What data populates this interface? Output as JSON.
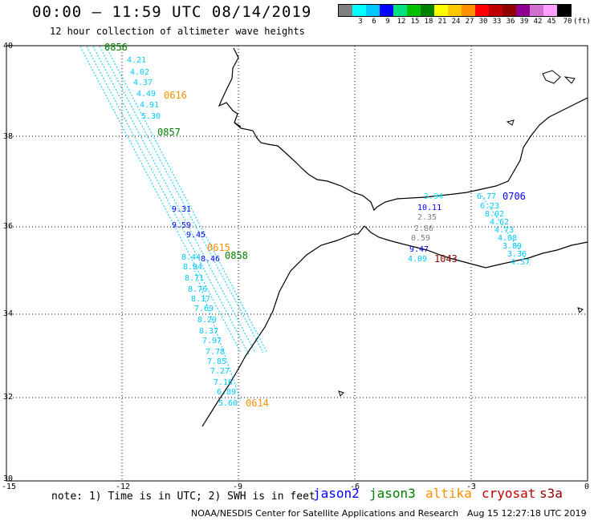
{
  "header": {
    "title": "00:00 – 11:59 UTC 08/14/2019",
    "subtitle": "12 hour collection of altimeter wave heights"
  },
  "legend": {
    "colors": [
      "#808080",
      "#00ffff",
      "#00c8ff",
      "#0000ff",
      "#00e080",
      "#00c000",
      "#008000",
      "#ffff00",
      "#ffc800",
      "#ff9000",
      "#ff0000",
      "#c00000",
      "#900000",
      "#900090",
      "#d070d0",
      "#ffa0ff",
      "#000000"
    ],
    "labels": [
      "3",
      "6",
      "9",
      "12",
      "15",
      "18",
      "21",
      "24",
      "27",
      "30",
      "33",
      "36",
      "39",
      "42",
      "45",
      "70",
      "(ft)"
    ]
  },
  "axes": {
    "lon_ticks": [
      "-15",
      "-12",
      "-9",
      "-6",
      "-3",
      "0"
    ],
    "lat_ticks": [
      "40",
      "38",
      "36",
      "34",
      "32",
      "30"
    ]
  },
  "track_labels": [
    {
      "text": "0856",
      "color": "#008000"
    },
    {
      "text": "0616",
      "color": "#ff9000"
    },
    {
      "text": "0857",
      "color": "#008000"
    },
    {
      "text": "0615",
      "color": "#ff9000"
    },
    {
      "text": "0858",
      "color": "#008000"
    },
    {
      "text": "0614",
      "color": "#ff9000"
    },
    {
      "text": "0706",
      "color": "#0000ff"
    },
    {
      "text": "1043",
      "color": "#900000"
    }
  ],
  "track_values": [
    {
      "text": "4.21",
      "color": "#00c8ff"
    },
    {
      "text": "4.02",
      "color": "#00c8ff"
    },
    {
      "text": "4.37",
      "color": "#00c8ff"
    },
    {
      "text": "4.49",
      "color": "#00c8ff"
    },
    {
      "text": "4.91",
      "color": "#00c8ff"
    },
    {
      "text": "5.30",
      "color": "#00c8ff"
    },
    {
      "text": "9.31",
      "color": "#0000ff"
    },
    {
      "text": "9.59",
      "color": "#0000ff"
    },
    {
      "text": "9.45",
      "color": "#0000ff"
    },
    {
      "text": "8.44",
      "color": "#00c8ff"
    },
    {
      "text": "8.46",
      "color": "#0000ff"
    },
    {
      "text": "8.94",
      "color": "#00c8ff"
    },
    {
      "text": "8.71",
      "color": "#00c8ff"
    },
    {
      "text": "8.76",
      "color": "#00c8ff"
    },
    {
      "text": "8.17",
      "color": "#00c8ff"
    },
    {
      "text": "7.69",
      "color": "#00c8ff"
    },
    {
      "text": "8.29",
      "color": "#00c8ff"
    },
    {
      "text": "8.37",
      "color": "#00c8ff"
    },
    {
      "text": "7.97",
      "color": "#00c8ff"
    },
    {
      "text": "7.78",
      "color": "#00c8ff"
    },
    {
      "text": "7.85",
      "color": "#00c8ff"
    },
    {
      "text": "7.27",
      "color": "#00c8ff"
    },
    {
      "text": "7.16",
      "color": "#00c8ff"
    },
    {
      "text": "6.89",
      "color": "#00c8ff"
    },
    {
      "text": "5.60",
      "color": "#00c8ff"
    },
    {
      "text": "3.94",
      "color": "#00ffff"
    },
    {
      "text": "10.11",
      "color": "#0000ff"
    },
    {
      "text": "2.35",
      "color": "#808080"
    },
    {
      "text": "2.86",
      "color": "#808080"
    },
    {
      "text": "0.59",
      "color": "#808080"
    },
    {
      "text": "9.47",
      "color": "#0000ff"
    },
    {
      "text": "4.09",
      "color": "#00c8ff"
    },
    {
      "text": "6.77",
      "color": "#00c8ff"
    },
    {
      "text": "6.23",
      "color": "#00c8ff"
    },
    {
      "text": "8.02",
      "color": "#00c8ff"
    },
    {
      "text": "4.62",
      "color": "#00c8ff"
    },
    {
      "text": "4.73",
      "color": "#00c8ff"
    },
    {
      "text": "4.08",
      "color": "#00c8ff"
    },
    {
      "text": "3.89",
      "color": "#00c8ff"
    },
    {
      "text": "3.36",
      "color": "#00c8ff"
    },
    {
      "text": "4.57",
      "color": "#00c8ff"
    }
  ],
  "footer": {
    "note": "note: 1) Time is in UTC; 2) SWH is in feet",
    "satellites": [
      {
        "name": "jason2",
        "color": "#0000ff"
      },
      {
        "name": "jason3",
        "color": "#008000"
      },
      {
        "name": "altika",
        "color": "#ff9000"
      },
      {
        "name": "cryosat",
        "color": "#c00000"
      },
      {
        "name": "s3a",
        "color": "#900000"
      }
    ],
    "agency": "NOAA/NESDIS Center for Satellite Applications and Research",
    "timestamp": "Aug 15 12:27:18 UTC 2019"
  }
}
